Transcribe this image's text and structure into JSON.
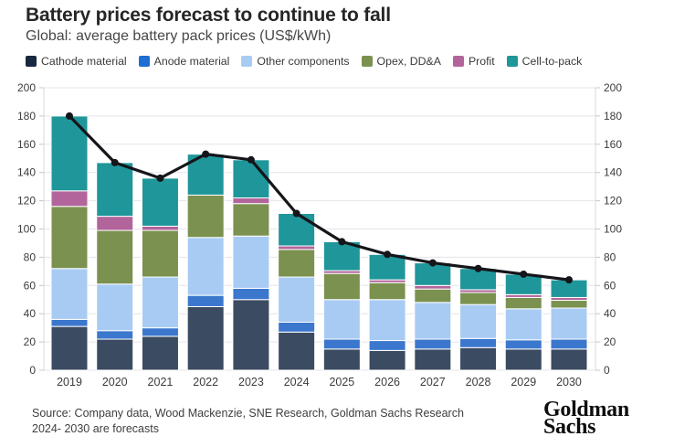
{
  "header": {
    "title": "Battery prices forecast to continue to fall",
    "subtitle": "Global: average battery pack prices (US$/kWh)"
  },
  "chart_data": {
    "type": "bar",
    "stacked": true,
    "categories": [
      "2019",
      "2020",
      "2021",
      "2022",
      "2023",
      "2024",
      "2025",
      "2026",
      "2027",
      "2028",
      "2029",
      "2030"
    ],
    "series": [
      {
        "id": "cathode-material",
        "name": "Cathode material",
        "color": "#3b4b61",
        "swatch": "#16293e",
        "values": [
          31,
          22,
          24,
          45,
          50,
          27,
          15,
          14,
          15,
          16,
          15,
          15
        ]
      },
      {
        "id": "anode-material",
        "name": "Anode material",
        "color": "#3b77cd",
        "swatch": "#1d6fd1",
        "values": [
          5,
          6,
          6,
          8,
          8,
          7,
          7,
          7,
          7,
          6.5,
          6.5,
          7
        ]
      },
      {
        "id": "other-components",
        "name": "Other components",
        "color": "#a8cbf3",
        "swatch": "#a8cbf3",
        "values": [
          36,
          33,
          36,
          41,
          37,
          32,
          28,
          29,
          26,
          24,
          22,
          22
        ]
      },
      {
        "id": "opex-dda",
        "name": "Opex, DD&A",
        "color": "#7b9150",
        "swatch": "#7b9150",
        "values": [
          44,
          38,
          33,
          30,
          23,
          19.5,
          18.5,
          12,
          9.5,
          8.5,
          8,
          5.5
        ]
      },
      {
        "id": "profit",
        "name": "Profit",
        "color": "#b2659b",
        "swatch": "#b2659b",
        "values": [
          11,
          10,
          3,
          0,
          4,
          2.5,
          2,
          2,
          2.5,
          2,
          2,
          2
        ]
      },
      {
        "id": "cell-to-pack",
        "name": "Cell-to-pack",
        "color": "#1f969a",
        "swatch": "#1f969a",
        "values": [
          53,
          38,
          34,
          29,
          27,
          23,
          20.5,
          18,
          16,
          15,
          14.5,
          12.5
        ]
      }
    ],
    "total_line": {
      "color": "#15151a",
      "values": [
        180,
        147,
        136,
        153,
        149,
        111,
        91,
        82,
        76,
        72,
        68,
        64
      ]
    },
    "ylim": [
      0,
      200
    ],
    "ytick_step": 20,
    "y_axis_sides": "both",
    "grid": true,
    "legend_position": "top"
  },
  "footer": {
    "source_line1": "Source: Company data, Wood Mackenzie, SNE Research, Goldman Sachs Research",
    "source_line2": "2024- 2030 are forecasts",
    "logo_line1": "Goldman",
    "logo_line2": "Sachs"
  }
}
